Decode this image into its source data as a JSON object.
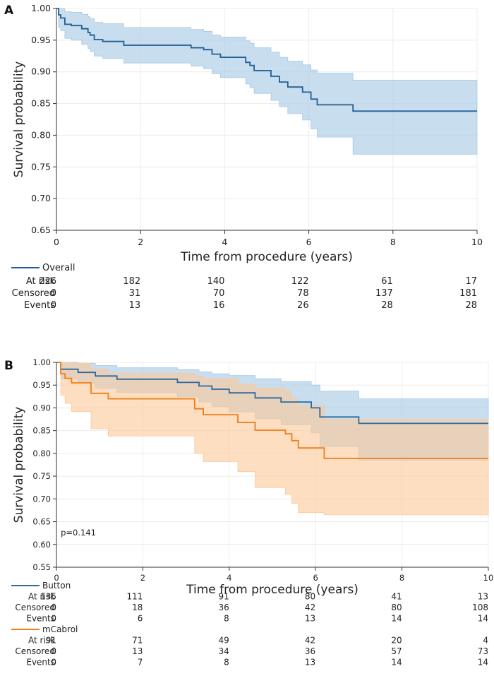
{
  "chart_data": [
    {
      "type": "line",
      "panel_label": "A",
      "title": "",
      "xlabel": "Time from procedure (years)",
      "ylabel": "Survival probability",
      "xlim": [
        0,
        10
      ],
      "ylim": [
        0.65,
        1.0
      ],
      "xticks": [
        "0",
        "2",
        "4",
        "6",
        "8",
        "10"
      ],
      "yticks": [
        "0.65",
        "0.70",
        "0.75",
        "0.80",
        "0.85",
        "0.90",
        "0.95",
        "1.00"
      ],
      "grid": true,
      "series": [
        {
          "name": "Overall",
          "color": "#1f5f95",
          "ci_color": "#a6c8e4",
          "x": [
            0,
            0.05,
            0.1,
            0.2,
            0.35,
            0.6,
            0.75,
            0.8,
            0.9,
            1.1,
            1.6,
            3.2,
            3.5,
            3.7,
            3.9,
            4.5,
            4.6,
            4.7,
            5.1,
            5.3,
            5.5,
            5.85,
            6.05,
            6.2,
            7.05,
            10
          ],
          "values": [
            1.0,
            0.99,
            0.985,
            0.975,
            0.973,
            0.968,
            0.962,
            0.958,
            0.951,
            0.948,
            0.942,
            0.938,
            0.935,
            0.928,
            0.923,
            0.915,
            0.91,
            0.902,
            0.893,
            0.884,
            0.876,
            0.868,
            0.857,
            0.848,
            0.838,
            0.838
          ],
          "ci_lower": [
            1.0,
            0.97,
            0.965,
            0.953,
            0.95,
            0.943,
            0.937,
            0.932,
            0.925,
            0.921,
            0.914,
            0.909,
            0.905,
            0.897,
            0.891,
            0.881,
            0.875,
            0.866,
            0.855,
            0.845,
            0.834,
            0.824,
            0.81,
            0.797,
            0.77,
            0.77
          ],
          "ci_upper": [
            1.0,
            1.0,
            1.0,
            0.995,
            0.994,
            0.991,
            0.987,
            0.984,
            0.978,
            0.976,
            0.97,
            0.967,
            0.964,
            0.958,
            0.955,
            0.949,
            0.945,
            0.938,
            0.931,
            0.923,
            0.917,
            0.911,
            0.903,
            0.898,
            0.887,
            0.887
          ]
        }
      ],
      "risk_table": {
        "groups": [
          {
            "name": "Overall",
            "color": "#1f5f95",
            "rows": [
              {
                "label": "At risk",
                "values": [
                  "226",
                  "182",
                  "140",
                  "122",
                  "61",
                  "17"
                ]
              },
              {
                "label": "Censored",
                "values": [
                  "0",
                  "31",
                  "70",
                  "78",
                  "137",
                  "181"
                ]
              },
              {
                "label": "Events",
                "values": [
                  "0",
                  "13",
                  "16",
                  "26",
                  "28",
                  "28"
                ]
              }
            ]
          }
        ]
      }
    },
    {
      "type": "line",
      "panel_label": "B",
      "title": "",
      "xlabel": "Time from procedure (years)",
      "ylabel": "Survival probability",
      "xlim": [
        0,
        10
      ],
      "ylim": [
        0.55,
        1.0
      ],
      "xticks": [
        "0",
        "2",
        "4",
        "6",
        "8",
        "10"
      ],
      "yticks": [
        "0.55",
        "0.60",
        "0.65",
        "0.70",
        "0.75",
        "0.80",
        "0.85",
        "0.90",
        "0.95",
        "1.00"
      ],
      "grid": true,
      "annotation": "p=0.141",
      "series": [
        {
          "name": "Button",
          "color": "#2a6aa0",
          "ci_color": "#a6c8e4",
          "x": [
            0,
            0.1,
            0.5,
            0.9,
            1.4,
            2.8,
            3.3,
            3.6,
            4.0,
            4.6,
            5.2,
            5.9,
            6.1,
            7.0,
            10
          ],
          "values": [
            1.0,
            0.985,
            0.978,
            0.97,
            0.963,
            0.956,
            0.948,
            0.941,
            0.933,
            0.922,
            0.913,
            0.9,
            0.88,
            0.866,
            0.866
          ],
          "ci_lower": [
            1.0,
            0.964,
            0.954,
            0.943,
            0.934,
            0.924,
            0.913,
            0.903,
            0.891,
            0.876,
            0.863,
            0.845,
            0.815,
            0.785,
            0.785
          ],
          "ci_upper": [
            1.0,
            1.0,
            0.998,
            0.993,
            0.988,
            0.984,
            0.979,
            0.975,
            0.971,
            0.964,
            0.958,
            0.95,
            0.937,
            0.92,
            0.92
          ]
        },
        {
          "name": "mCabrol",
          "color": "#f07d1a",
          "ci_color": "#fcc99b",
          "x": [
            0,
            0.1,
            0.2,
            0.35,
            0.8,
            1.2,
            3.2,
            3.4,
            4.2,
            4.6,
            5.3,
            5.45,
            5.6,
            6.2,
            10
          ],
          "values": [
            1.0,
            0.975,
            0.965,
            0.955,
            0.932,
            0.92,
            0.898,
            0.885,
            0.868,
            0.851,
            0.843,
            0.828,
            0.812,
            0.789,
            0.789
          ],
          "ci_lower": [
            1.0,
            0.928,
            0.91,
            0.892,
            0.854,
            0.838,
            0.8,
            0.782,
            0.76,
            0.725,
            0.71,
            0.69,
            0.67,
            0.665,
            0.665
          ],
          "ci_upper": [
            1.0,
            1.0,
            1.0,
            0.998,
            0.985,
            0.976,
            0.97,
            0.964,
            0.952,
            0.944,
            0.936,
            0.92,
            0.905,
            0.875,
            0.875
          ]
        }
      ],
      "risk_table": {
        "groups": [
          {
            "name": "Button",
            "color": "#2a6aa0",
            "rows": [
              {
                "label": "At risk",
                "values": [
                  "135",
                  "111",
                  "91",
                  "80",
                  "41",
                  "13"
                ]
              },
              {
                "label": "Censored",
                "values": [
                  "0",
                  "18",
                  "36",
                  "42",
                  "80",
                  "108"
                ]
              },
              {
                "label": "Events",
                "values": [
                  "0",
                  "6",
                  "8",
                  "13",
                  "14",
                  "14"
                ]
              }
            ]
          },
          {
            "name": "mCabrol",
            "color": "#f07d1a",
            "rows": [
              {
                "label": "At risk",
                "values": [
                  "91",
                  "71",
                  "49",
                  "42",
                  "20",
                  "4"
                ]
              },
              {
                "label": "Censored",
                "values": [
                  "0",
                  "13",
                  "34",
                  "36",
                  "57",
                  "73"
                ]
              },
              {
                "label": "Events",
                "values": [
                  "0",
                  "7",
                  "8",
                  "13",
                  "14",
                  "14"
                ]
              }
            ]
          }
        ]
      }
    }
  ]
}
